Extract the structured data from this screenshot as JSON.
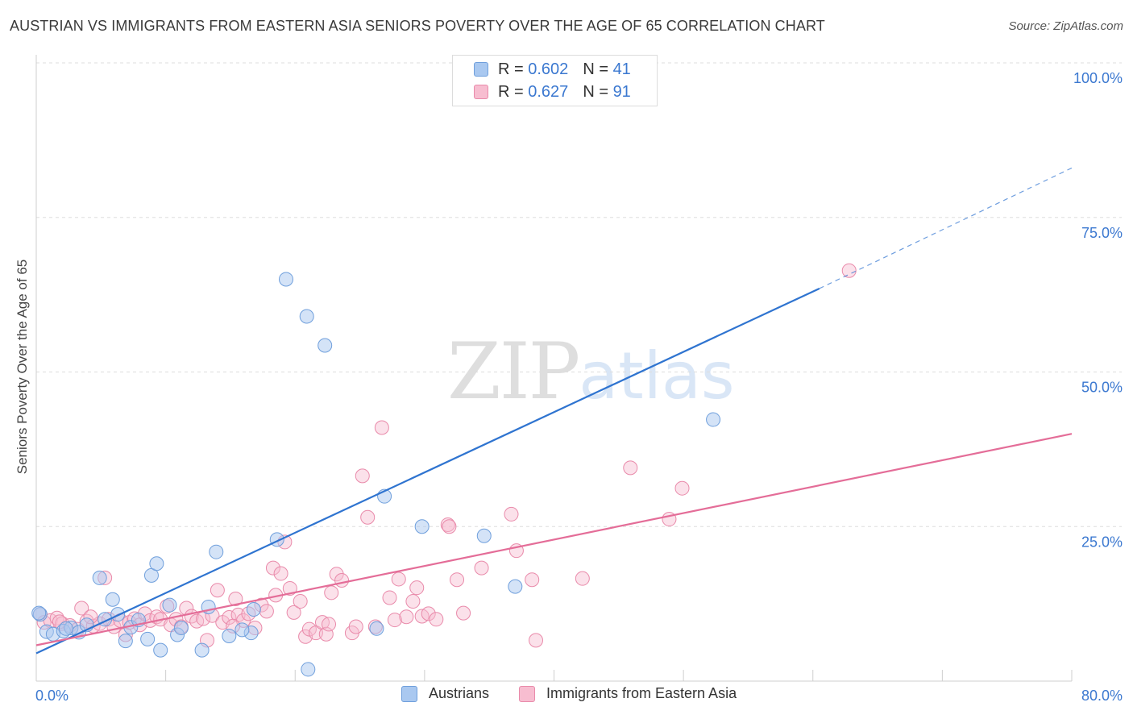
{
  "header": {
    "title": "AUSTRIAN VS IMMIGRANTS FROM EASTERN ASIA SENIORS POVERTY OVER THE AGE OF 65 CORRELATION CHART",
    "source": "Source: ZipAtlas.com"
  },
  "watermark": {
    "zip": "ZIP",
    "atlas": "atlas"
  },
  "legend_top": {
    "rows": [
      {
        "r_label": "R =",
        "r_value": "0.602",
        "n_label": "N =",
        "n_value": "41"
      },
      {
        "r_label": "R =",
        "r_value": "0.627",
        "n_label": "N =",
        "n_value": "91"
      }
    ]
  },
  "legend_bottom": {
    "series1": "Austrians",
    "series2": "Immigrants from Eastern Asia"
  },
  "colors": {
    "blue_fill": "#a9c8f0",
    "blue_stroke": "#6f9fdc",
    "blue_line": "#2f74d0",
    "pink_fill": "#f7bdd0",
    "pink_stroke": "#e98aaa",
    "pink_line": "#e46d98",
    "tick_text": "#3b78d0",
    "grid": "#dddddd"
  },
  "chart_data": {
    "type": "scatter",
    "title": "AUSTRIAN VS IMMIGRANTS FROM EASTERN ASIA SENIORS POVERTY OVER THE AGE OF 65 CORRELATION CHART",
    "xlabel": "",
    "ylabel": "Seniors Poverty Over the Age of 65",
    "xlim": [
      0,
      80
    ],
    "ylim": [
      0,
      100
    ],
    "x_tick_labels": [
      {
        "value": 0,
        "label": "0.0%"
      },
      {
        "value": 80,
        "label": "80.0%"
      }
    ],
    "y_tick_labels": [
      {
        "value": 25,
        "label": "25.0%"
      },
      {
        "value": 50,
        "label": "50.0%"
      },
      {
        "value": 75,
        "label": "75.0%"
      },
      {
        "value": 100,
        "label": "100.0%"
      }
    ],
    "grid": true,
    "legend_position": "bottom",
    "series": [
      {
        "name": "Austrians",
        "color": "#6f9fdc",
        "trend": {
          "x": [
            0,
            60.5
          ],
          "y": [
            4.5,
            63.5
          ],
          "dashed_to": [
            80,
            83
          ]
        },
        "points": [
          [
            0.3,
            10.8
          ],
          [
            0.8,
            8.0
          ],
          [
            1.3,
            7.6
          ],
          [
            2.1,
            8.1
          ],
          [
            2.7,
            8.6
          ],
          [
            3.3,
            7.9
          ],
          [
            3.9,
            9.1
          ],
          [
            4.9,
            16.7
          ],
          [
            5.3,
            10.0
          ],
          [
            5.9,
            13.2
          ],
          [
            6.3,
            10.8
          ],
          [
            6.9,
            6.5
          ],
          [
            7.3,
            8.7
          ],
          [
            7.9,
            9.9
          ],
          [
            8.6,
            6.8
          ],
          [
            8.9,
            17.1
          ],
          [
            9.3,
            19.0
          ],
          [
            9.6,
            5.0
          ],
          [
            10.3,
            12.3
          ],
          [
            10.9,
            7.5
          ],
          [
            11.2,
            8.6
          ],
          [
            12.8,
            5.0
          ],
          [
            13.3,
            12.0
          ],
          [
            13.9,
            20.9
          ],
          [
            14.9,
            7.3
          ],
          [
            16.6,
            7.8
          ],
          [
            16.8,
            11.6
          ],
          [
            18.6,
            22.9
          ],
          [
            19.3,
            65.0
          ],
          [
            20.9,
            59.0
          ],
          [
            21.0,
            1.9
          ],
          [
            22.3,
            54.3
          ],
          [
            26.3,
            8.5
          ],
          [
            26.9,
            29.9
          ],
          [
            29.8,
            25.0
          ],
          [
            34.6,
            23.5
          ],
          [
            37.0,
            15.3
          ],
          [
            52.3,
            42.3
          ],
          [
            0.2,
            11.0
          ],
          [
            2.3,
            8.5
          ],
          [
            15.9,
            8.3
          ]
        ]
      },
      {
        "name": "Immigrants from Eastern Asia",
        "color": "#e98aaa",
        "trend": {
          "x": [
            0,
            80
          ],
          "y": [
            5.8,
            40.0
          ]
        },
        "points": [
          [
            0.3,
            10.8
          ],
          [
            0.6,
            9.5
          ],
          [
            1.1,
            9.8
          ],
          [
            1.6,
            10.2
          ],
          [
            2.0,
            9.3
          ],
          [
            2.6,
            9.0
          ],
          [
            3.2,
            8.4
          ],
          [
            3.5,
            11.8
          ],
          [
            3.9,
            9.7
          ],
          [
            4.4,
            8.9
          ],
          [
            4.9,
            9.3
          ],
          [
            5.3,
            16.7
          ],
          [
            5.6,
            10.0
          ],
          [
            6.0,
            8.8
          ],
          [
            6.5,
            9.8
          ],
          [
            6.9,
            7.5
          ],
          [
            7.2,
            9.5
          ],
          [
            7.6,
            10.1
          ],
          [
            8.0,
            9.1
          ],
          [
            8.4,
            10.9
          ],
          [
            8.8,
            9.8
          ],
          [
            9.3,
            10.4
          ],
          [
            9.6,
            10.0
          ],
          [
            10.1,
            12.1
          ],
          [
            10.4,
            9.1
          ],
          [
            10.8,
            10.0
          ],
          [
            11.2,
            8.8
          ],
          [
            11.6,
            11.8
          ],
          [
            12.0,
            10.5
          ],
          [
            12.4,
            9.7
          ],
          [
            12.9,
            10.1
          ],
          [
            13.2,
            6.6
          ],
          [
            13.6,
            10.6
          ],
          [
            14.0,
            14.7
          ],
          [
            14.4,
            9.5
          ],
          [
            14.9,
            10.3
          ],
          [
            15.4,
            13.3
          ],
          [
            15.6,
            10.7
          ],
          [
            16.0,
            9.8
          ],
          [
            16.4,
            10.9
          ],
          [
            16.9,
            8.6
          ],
          [
            17.4,
            12.3
          ],
          [
            17.8,
            11.3
          ],
          [
            18.3,
            18.3
          ],
          [
            18.5,
            13.9
          ],
          [
            18.9,
            17.4
          ],
          [
            19.2,
            22.5
          ],
          [
            19.6,
            15.0
          ],
          [
            19.9,
            11.1
          ],
          [
            20.4,
            12.9
          ],
          [
            20.8,
            7.2
          ],
          [
            21.1,
            8.4
          ],
          [
            21.6,
            7.8
          ],
          [
            22.1,
            9.5
          ],
          [
            22.4,
            7.6
          ],
          [
            22.8,
            14.3
          ],
          [
            23.2,
            17.3
          ],
          [
            23.6,
            16.3
          ],
          [
            24.4,
            7.8
          ],
          [
            24.7,
            8.8
          ],
          [
            25.2,
            33.2
          ],
          [
            25.6,
            26.5
          ],
          [
            26.2,
            8.8
          ],
          [
            26.7,
            41.0
          ],
          [
            27.3,
            13.5
          ],
          [
            27.7,
            9.9
          ],
          [
            28.0,
            16.5
          ],
          [
            28.6,
            10.4
          ],
          [
            29.1,
            12.9
          ],
          [
            29.4,
            15.1
          ],
          [
            29.8,
            10.5
          ],
          [
            30.3,
            10.9
          ],
          [
            30.9,
            10.0
          ],
          [
            31.8,
            25.3
          ],
          [
            31.9,
            25.0
          ],
          [
            32.5,
            16.4
          ],
          [
            33.0,
            11.0
          ],
          [
            34.4,
            18.3
          ],
          [
            36.7,
            27.0
          ],
          [
            37.1,
            21.1
          ],
          [
            38.3,
            16.4
          ],
          [
            38.6,
            6.6
          ],
          [
            42.2,
            16.6
          ],
          [
            45.9,
            34.5
          ],
          [
            48.9,
            26.2
          ],
          [
            49.9,
            31.2
          ],
          [
            62.8,
            66.4
          ],
          [
            1.8,
            9.6
          ],
          [
            4.2,
            10.4
          ],
          [
            15.2,
            8.9
          ],
          [
            22.6,
            9.2
          ]
        ]
      }
    ]
  }
}
